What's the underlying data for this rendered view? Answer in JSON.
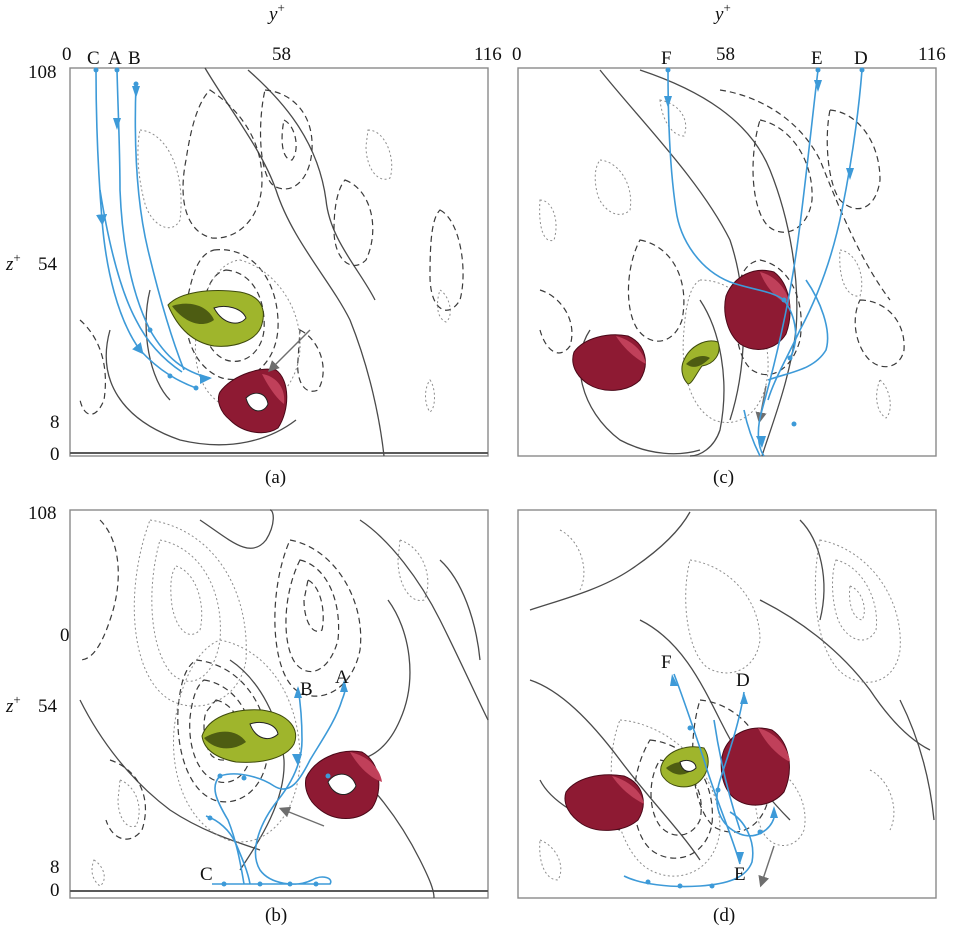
{
  "figure": {
    "axis_labels": {
      "y_top": "y",
      "y_top_sup": "+",
      "z_side": "z",
      "z_side_sup": "+"
    },
    "y_ticks": [
      "0",
      "58",
      "116"
    ],
    "z_ticks": [
      "108",
      "54",
      "8",
      "0"
    ],
    "panel_b_extra_tick": "0",
    "panels": [
      {
        "id": "a",
        "caption": "(a)",
        "trajectory_labels": [
          "C",
          "A",
          "B"
        ]
      },
      {
        "id": "c",
        "caption": "(c)",
        "trajectory_labels": [
          "F",
          "E",
          "D"
        ]
      },
      {
        "id": "b",
        "caption": "(b)",
        "trajectory_labels": [
          "B",
          "A",
          "C"
        ]
      },
      {
        "id": "d",
        "caption": "(d)",
        "trajectory_labels": [
          "F",
          "D",
          "E"
        ]
      }
    ],
    "colors": {
      "trajectory": "#3d9ad8",
      "green_vortex": "#9fb52c",
      "red_vortex": "#8e1a33",
      "contour_solid": "#4a4a4a",
      "contour_dashed": "#3a3a3a",
      "contour_dotted": "#8c8c8c"
    }
  }
}
